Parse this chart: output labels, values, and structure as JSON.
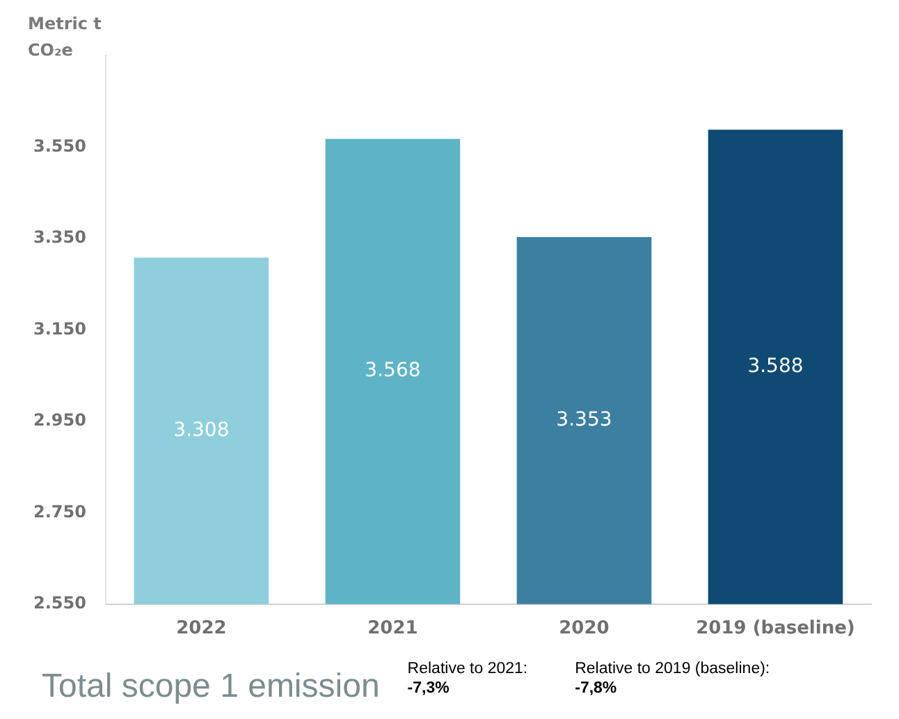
{
  "chart_data": {
    "type": "bar",
    "title": "Total scope 1 emission",
    "ylabel": "Metric t CO₂e",
    "categories": [
      "2022",
      "2021",
      "2020",
      "2019 (baseline)"
    ],
    "values": [
      3308,
      3568,
      3353,
      3588
    ],
    "colors": [
      "#8ecfdb",
      "#5fb3c6",
      "#3d7fa0",
      "#0e4a73"
    ],
    "value_labels": [
      "3.308",
      "3.568",
      "3.353",
      "3.588"
    ],
    "ylim": [
      2550,
      3750
    ],
    "yticks": [
      {
        "value": 2550,
        "label": "2.550"
      },
      {
        "value": 2750,
        "label": "2.750"
      },
      {
        "value": 2950,
        "label": "2.950"
      },
      {
        "value": 3150,
        "label": "3.150"
      },
      {
        "value": 3350,
        "label": "3.350"
      },
      {
        "value": 3550,
        "label": "3.550"
      }
    ],
    "grid": false,
    "legend": false,
    "annotations": [
      "Relative to 2021:\n-7,3%",
      "Relative to 2019 (baseline):\n-7,8%"
    ]
  }
}
